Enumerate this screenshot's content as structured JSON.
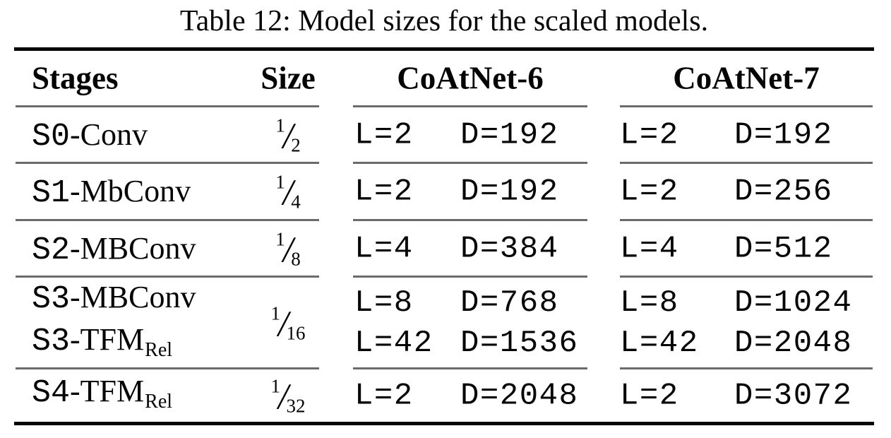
{
  "caption": {
    "text": "Table 12: Model sizes for the scaled models."
  },
  "glyphs": {
    "frac_slash": "/"
  },
  "table": {
    "headers": {
      "stages": "Stages",
      "size": "Size",
      "coatnet6": "CoAtNet-6",
      "coatnet7": "CoAtNet-7"
    },
    "rows": [
      {
        "stages": [
          {
            "prefix": "S0",
            "name": "-Conv"
          }
        ],
        "size": {
          "num": "1",
          "den": "2"
        },
        "coatnet6": [
          {
            "l": "L=2",
            "d": "D=192"
          }
        ],
        "coatnet7": [
          {
            "l": "L=2",
            "d": "D=192"
          }
        ]
      },
      {
        "stages": [
          {
            "prefix": "S1",
            "name": "-MbConv"
          }
        ],
        "size": {
          "num": "1",
          "den": "4"
        },
        "coatnet6": [
          {
            "l": "L=2",
            "d": "D=192"
          }
        ],
        "coatnet7": [
          {
            "l": "L=2",
            "d": "D=256"
          }
        ]
      },
      {
        "stages": [
          {
            "prefix": "S2",
            "name": "-MBConv"
          }
        ],
        "size": {
          "num": "1",
          "den": "8"
        },
        "coatnet6": [
          {
            "l": "L=4",
            "d": "D=384"
          }
        ],
        "coatnet7": [
          {
            "l": "L=4",
            "d": "D=512"
          }
        ]
      },
      {
        "stages": [
          {
            "prefix": "S3",
            "name": "-MBConv"
          },
          {
            "prefix": "S3",
            "name": "-TFM",
            "sub": "Rel"
          }
        ],
        "size": {
          "num": "1",
          "den": "16"
        },
        "coatnet6": [
          {
            "l": "L=8",
            "d": "D=768"
          },
          {
            "l": "L=42",
            "d": "D=1536"
          }
        ],
        "coatnet7": [
          {
            "l": "L=8",
            "d": "D=1024"
          },
          {
            "l": "L=42",
            "d": "D=2048"
          }
        ]
      },
      {
        "stages": [
          {
            "prefix": "S4",
            "name": "-TFM",
            "sub": "Rel"
          }
        ],
        "size": {
          "num": "1",
          "den": "32"
        },
        "coatnet6": [
          {
            "l": "L=2",
            "d": "D=2048"
          }
        ],
        "coatnet7": [
          {
            "l": "L=2",
            "d": "D=3072"
          }
        ]
      }
    ]
  }
}
